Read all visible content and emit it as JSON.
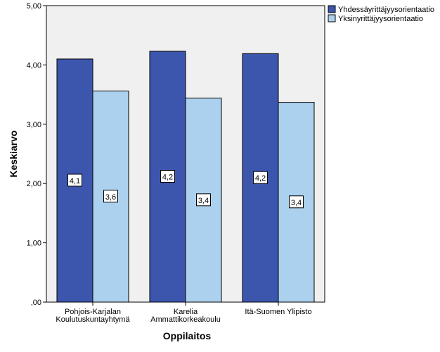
{
  "chart_data": {
    "type": "bar",
    "title": "",
    "xlabel": "Oppilaitos",
    "ylabel": "Keskiarvo",
    "ylim": [
      0,
      5
    ],
    "yticks": [
      0,
      1,
      2,
      3,
      4,
      5
    ],
    "ytick_labels": [
      ",00",
      "1,00",
      "2,00",
      "3,00",
      "4,00",
      "5,00"
    ],
    "grid": false,
    "legend_position": "top-right",
    "categories": [
      [
        "Pohjois-Karjalan",
        "Koulutuskuntayhtymä"
      ],
      [
        "Karelia",
        "Ammattikorkeakoulu"
      ],
      [
        "Itä-Suomen Ylipisto"
      ]
    ],
    "series": [
      {
        "name": "Yhdessäyrittäjyysorientaatio",
        "color": "#3d56ad",
        "values": [
          4.1,
          4.23,
          4.19
        ],
        "labels": [
          "4,1",
          "4,2",
          "4,2"
        ]
      },
      {
        "name": "Yksinyrittäjyysorientaatio",
        "color": "#acd1ee",
        "values": [
          3.56,
          3.44,
          3.37
        ],
        "labels": [
          "3,6",
          "3,4",
          "3,4"
        ]
      }
    ]
  }
}
